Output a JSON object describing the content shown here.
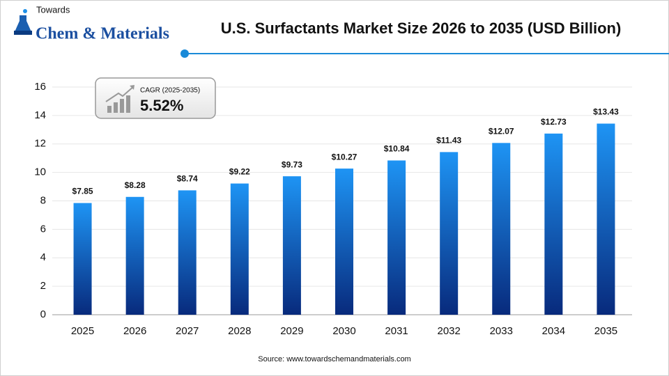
{
  "logo": {
    "line1": "Towards",
    "line2": "Chem & Materials"
  },
  "chart_data": {
    "type": "bar",
    "title": "U.S. Surfactants Market Size 2026 to 2035 (USD Billion)",
    "categories": [
      "2025",
      "2026",
      "2027",
      "2028",
      "2029",
      "2030",
      "2031",
      "2032",
      "2033",
      "2034",
      "2035"
    ],
    "values": [
      7.85,
      8.28,
      8.74,
      9.22,
      9.73,
      10.27,
      10.84,
      11.43,
      12.07,
      12.73,
      13.43
    ],
    "value_labels": [
      "$7.85",
      "$8.28",
      "$8.74",
      "$9.22",
      "$9.73",
      "$10.27",
      "$10.84",
      "$11.43",
      "$12.07",
      "$12.73",
      "$13.43"
    ],
    "gradient": [
      "#1e94f4",
      "#082a7c"
    ],
    "ylim": [
      0,
      16
    ],
    "yticks": [
      0,
      2,
      4,
      6,
      8,
      10,
      12,
      14,
      16
    ],
    "grid": true,
    "annotation": {
      "label": "CAGR (2025-2035)",
      "value": "5.52%"
    },
    "source": "Source: www.towardschemandmaterials.com"
  }
}
